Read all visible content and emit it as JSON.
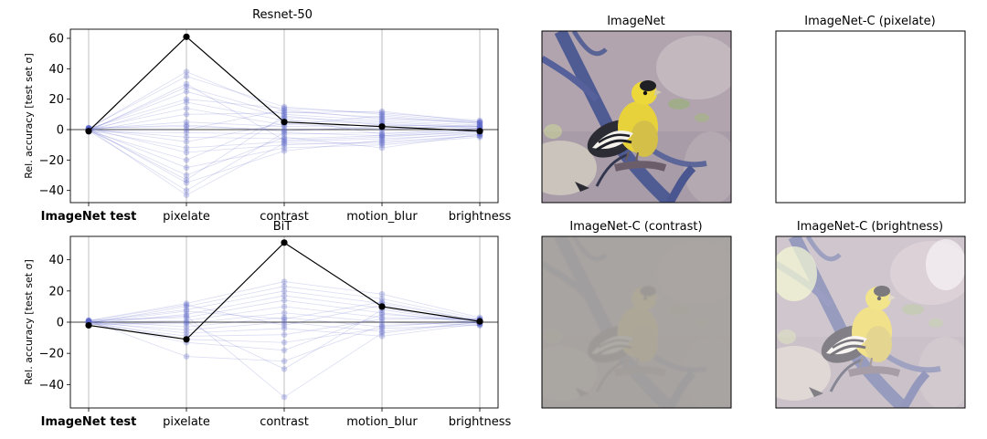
{
  "chart_data": [
    {
      "type": "line",
      "title": "Resnet-50",
      "ylabel": "Rel. accuracy [test set σ]",
      "categories": [
        "ImageNet test",
        "pixelate",
        "contrast",
        "motion_blur",
        "brightness"
      ],
      "yticks": [
        -40,
        -20,
        0,
        20,
        40,
        60
      ],
      "ylim": [
        -48,
        66
      ],
      "grid": "vertical",
      "highlight": {
        "values": [
          -1,
          61,
          5,
          2,
          -1
        ]
      },
      "background_series": [
        {
          "values": [
            0.5,
            38,
            12,
            8,
            4
          ]
        },
        {
          "values": [
            1,
            35,
            15,
            10,
            5
          ]
        },
        {
          "values": [
            -0.5,
            28,
            10,
            6,
            3
          ]
        },
        {
          "values": [
            0,
            25,
            8,
            5,
            2
          ]
        },
        {
          "values": [
            0.8,
            20,
            14,
            11,
            6
          ]
        },
        {
          "values": [
            -1,
            18,
            6,
            4,
            1
          ]
        },
        {
          "values": [
            0.3,
            14,
            3,
            9,
            4
          ]
        },
        {
          "values": [
            -0.8,
            10,
            11,
            12,
            5
          ]
        },
        {
          "values": [
            0.5,
            5,
            2,
            3,
            2
          ]
        },
        {
          "values": [
            1.2,
            2,
            0,
            1,
            0
          ]
        },
        {
          "values": [
            -1.5,
            -2,
            -3,
            -2,
            -1
          ]
        },
        {
          "values": [
            0,
            -5,
            -6,
            -4,
            -2
          ]
        },
        {
          "values": [
            0.6,
            -8,
            4,
            0,
            3
          ]
        },
        {
          "values": [
            -0.4,
            -12,
            -8,
            -6,
            -3
          ]
        },
        {
          "values": [
            0.9,
            -15,
            -10,
            -8,
            -4
          ]
        },
        {
          "values": [
            -1.2,
            -20,
            7,
            -3,
            1
          ]
        },
        {
          "values": [
            0.2,
            -25,
            -12,
            -10,
            -5
          ]
        },
        {
          "values": [
            -0.6,
            -30,
            -5,
            -12,
            -3
          ]
        },
        {
          "values": [
            1.1,
            -35,
            -14,
            -7,
            -2
          ]
        },
        {
          "values": [
            -0.9,
            -40,
            -2,
            -4,
            0
          ]
        },
        {
          "values": [
            0.4,
            -43,
            -9,
            -9,
            -4
          ]
        },
        {
          "values": [
            -0.2,
            0,
            13,
            7,
            5
          ]
        },
        {
          "values": [
            0.7,
            3,
            -1,
            2,
            1
          ]
        },
        {
          "values": [
            -1.1,
            30,
            -7,
            -5,
            -1
          ]
        },
        {
          "values": [
            0.1,
            -33,
            9,
            3,
            2
          ]
        }
      ]
    },
    {
      "type": "line",
      "title": "BiT",
      "ylabel": "Rel. accuracy [test set σ]",
      "categories": [
        "ImageNet test",
        "pixelate",
        "contrast",
        "motion_blur",
        "brightness"
      ],
      "yticks": [
        -40,
        -20,
        0,
        20,
        40
      ],
      "ylim": [
        -55,
        55
      ],
      "grid": "vertical",
      "highlight": {
        "values": [
          -2,
          -11,
          51,
          10,
          0.5
        ]
      },
      "background_series": [
        {
          "values": [
            1,
            12,
            26,
            18,
            3
          ]
        },
        {
          "values": [
            -0.5,
            10,
            23,
            15,
            2
          ]
        },
        {
          "values": [
            0.5,
            8,
            20,
            12,
            1
          ]
        },
        {
          "values": [
            -1,
            5,
            17,
            9,
            0
          ]
        },
        {
          "values": [
            1.2,
            3,
            14,
            6,
            -1
          ]
        },
        {
          "values": [
            0,
            1,
            10,
            3,
            2
          ]
        },
        {
          "values": [
            -1.2,
            -1,
            6,
            0,
            -2
          ]
        },
        {
          "values": [
            0.8,
            -3,
            3,
            -3,
            1
          ]
        },
        {
          "values": [
            -0.3,
            -5,
            0,
            -6,
            0
          ]
        },
        {
          "values": [
            0.6,
            -7,
            -4,
            -9,
            -1
          ]
        },
        {
          "values": [
            -0.8,
            -9,
            -8,
            2,
            2
          ]
        },
        {
          "values": [
            0.3,
            -11,
            -13,
            -4,
            -2
          ]
        },
        {
          "values": [
            -0.6,
            -13,
            -18,
            5,
            1
          ]
        },
        {
          "values": [
            1,
            -22,
            -25,
            -2,
            0
          ]
        },
        {
          "values": [
            -1.4,
            0,
            -30,
            8,
            -1
          ]
        },
        {
          "values": [
            0.2,
            4,
            -48,
            -7,
            0
          ]
        },
        {
          "values": [
            -0.2,
            7,
            2,
            13,
            1
          ]
        },
        {
          "values": [
            0.9,
            11,
            -2,
            11,
            -1
          ]
        }
      ]
    }
  ],
  "images": [
    {
      "title": "ImageNet"
    },
    {
      "title": "ImageNet-C (pixelate)"
    },
    {
      "title": "ImageNet-C (contrast)"
    },
    {
      "title": "ImageNet-C (brightness)"
    }
  ]
}
